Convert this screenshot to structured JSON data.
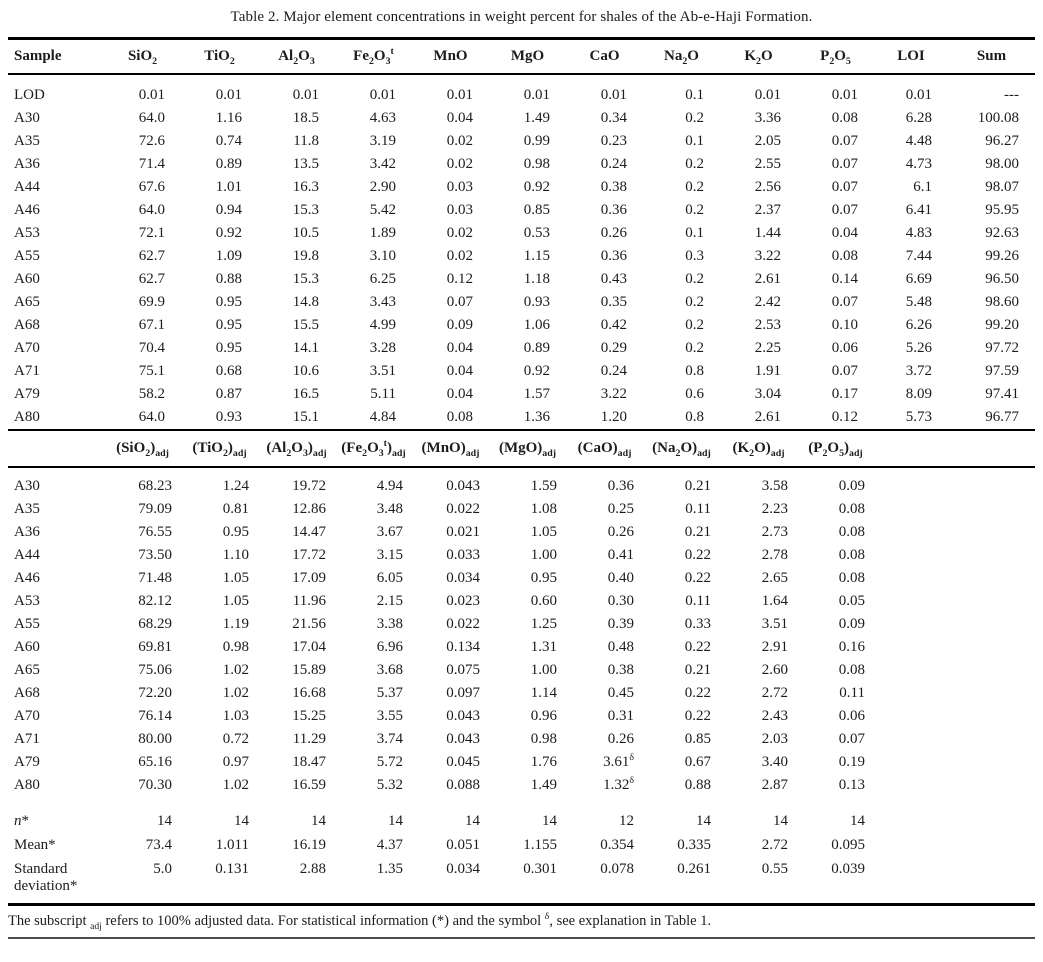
{
  "title": "Table 2. Major element concentrations in weight percent for shales of the Ab-e-Haji Formation.",
  "table1": {
    "headers": [
      "Sample",
      "SiO~2~",
      "TiO~2~",
      "Al~2~O~3~",
      "Fe~2~O~3~^t^",
      "MnO",
      "MgO",
      "CaO",
      "Na~2~O",
      "K~2~O",
      "P~2~O~5~",
      "LOI",
      "Sum"
    ],
    "rows": [
      [
        "LOD",
        "0.01",
        "0.01",
        "0.01",
        "0.01",
        "0.01",
        "0.01",
        "0.01",
        "0.1",
        "0.01",
        "0.01",
        "0.01",
        "---"
      ],
      [
        "A30",
        "64.0",
        "1.16",
        "18.5",
        "4.63",
        "0.04",
        "1.49",
        "0.34",
        "0.2",
        "3.36",
        "0.08",
        "6.28",
        "100.08"
      ],
      [
        "A35",
        "72.6",
        "0.74",
        "11.8",
        "3.19",
        "0.02",
        "0.99",
        "0.23",
        "0.1",
        "2.05",
        "0.07",
        "4.48",
        "96.27"
      ],
      [
        "A36",
        "71.4",
        "0.89",
        "13.5",
        "3.42",
        "0.02",
        "0.98",
        "0.24",
        "0.2",
        "2.55",
        "0.07",
        "4.73",
        "98.00"
      ],
      [
        "A44",
        "67.6",
        "1.01",
        "16.3",
        "2.90",
        "0.03",
        "0.92",
        "0.38",
        "0.2",
        "2.56",
        "0.07",
        "6.1",
        "98.07"
      ],
      [
        "A46",
        "64.0",
        "0.94",
        "15.3",
        "5.42",
        "0.03",
        "0.85",
        "0.36",
        "0.2",
        "2.37",
        "0.07",
        "6.41",
        "95.95"
      ],
      [
        "A53",
        "72.1",
        "0.92",
        "10.5",
        "1.89",
        "0.02",
        "0.53",
        "0.26",
        "0.1",
        "1.44",
        "0.04",
        "4.83",
        "92.63"
      ],
      [
        "A55",
        "62.7",
        "1.09",
        "19.8",
        "3.10",
        "0.02",
        "1.15",
        "0.36",
        "0.3",
        "3.22",
        "0.08",
        "7.44",
        "99.26"
      ],
      [
        "A60",
        "62.7",
        "0.88",
        "15.3",
        "6.25",
        "0.12",
        "1.18",
        "0.43",
        "0.2",
        "2.61",
        "0.14",
        "6.69",
        "96.50"
      ],
      [
        "A65",
        "69.9",
        "0.95",
        "14.8",
        "3.43",
        "0.07",
        "0.93",
        "0.35",
        "0.2",
        "2.42",
        "0.07",
        "5.48",
        "98.60"
      ],
      [
        "A68",
        "67.1",
        "0.95",
        "15.5",
        "4.99",
        "0.09",
        "1.06",
        "0.42",
        "0.2",
        "2.53",
        "0.10",
        "6.26",
        "99.20"
      ],
      [
        "A70",
        "70.4",
        "0.95",
        "14.1",
        "3.28",
        "0.04",
        "0.89",
        "0.29",
        "0.2",
        "2.25",
        "0.06",
        "5.26",
        "97.72"
      ],
      [
        "A71",
        "75.1",
        "0.68",
        "10.6",
        "3.51",
        "0.04",
        "0.92",
        "0.24",
        "0.8",
        "1.91",
        "0.07",
        "3.72",
        "97.59"
      ],
      [
        "A79",
        "58.2",
        "0.87",
        "16.5",
        "5.11",
        "0.04",
        "1.57",
        "3.22",
        "0.6",
        "3.04",
        "0.17",
        "8.09",
        "97.41"
      ],
      [
        "A80",
        "64.0",
        "0.93",
        "15.1",
        "4.84",
        "0.08",
        "1.36",
        "1.20",
        "0.8",
        "2.61",
        "0.12",
        "5.73",
        "96.77"
      ]
    ]
  },
  "table2": {
    "headers": [
      "(SiO~2~)~adj~",
      "(TiO~2~)~adj~",
      "(Al~2~O~3~)~adj~",
      "(Fe~2~O~3~^t^)~adj~",
      "(MnO)~adj~",
      "(MgO)~adj~",
      "(CaO)~adj~",
      "(Na~2~O)~adj~",
      "(K~2~O)~adj~",
      "(P~2~O~5~)~adj~"
    ],
    "rows": [
      [
        "A30",
        "68.23",
        "1.24",
        "19.72",
        "4.94",
        "0.043",
        "1.59",
        "0.36",
        "0.21",
        "3.58",
        "0.09"
      ],
      [
        "A35",
        "79.09",
        "0.81",
        "12.86",
        "3.48",
        "0.022",
        "1.08",
        "0.25",
        "0.11",
        "2.23",
        "0.08"
      ],
      [
        "A36",
        "76.55",
        "0.95",
        "14.47",
        "3.67",
        "0.021",
        "1.05",
        "0.26",
        "0.21",
        "2.73",
        "0.08"
      ],
      [
        "A44",
        "73.50",
        "1.10",
        "17.72",
        "3.15",
        "0.033",
        "1.00",
        "0.41",
        "0.22",
        "2.78",
        "0.08"
      ],
      [
        "A46",
        "71.48",
        "1.05",
        "17.09",
        "6.05",
        "0.034",
        "0.95",
        "0.40",
        "0.22",
        "2.65",
        "0.08"
      ],
      [
        "A53",
        "82.12",
        "1.05",
        "11.96",
        "2.15",
        "0.023",
        "0.60",
        "0.30",
        "0.11",
        "1.64",
        "0.05"
      ],
      [
        "A55",
        "68.29",
        "1.19",
        "21.56",
        "3.38",
        "0.022",
        "1.25",
        "0.39",
        "0.33",
        "3.51",
        "0.09"
      ],
      [
        "A60",
        "69.81",
        "0.98",
        "17.04",
        "6.96",
        "0.134",
        "1.31",
        "0.48",
        "0.22",
        "2.91",
        "0.16"
      ],
      [
        "A65",
        "75.06",
        "1.02",
        "15.89",
        "3.68",
        "0.075",
        "1.00",
        "0.38",
        "0.21",
        "2.60",
        "0.08"
      ],
      [
        "A68",
        "72.20",
        "1.02",
        "16.68",
        "5.37",
        "0.097",
        "1.14",
        "0.45",
        "0.22",
        "2.72",
        "0.11"
      ],
      [
        "A70",
        "76.14",
        "1.03",
        "15.25",
        "3.55",
        "0.043",
        "0.96",
        "0.31",
        "0.22",
        "2.43",
        "0.06"
      ],
      [
        "A71",
        "80.00",
        "0.72",
        "11.29",
        "3.74",
        "0.043",
        "0.98",
        "0.26",
        "0.85",
        "2.03",
        "0.07"
      ],
      [
        "A79",
        "65.16",
        "0.97",
        "18.47",
        "5.72",
        "0.045",
        "1.76",
        "3.61^δ^",
        "0.67",
        "3.40",
        "0.19"
      ],
      [
        "A80",
        "70.30",
        "1.02",
        "16.59",
        "5.32",
        "0.088",
        "1.49",
        "1.32^δ^",
        "0.88",
        "2.87",
        "0.13"
      ]
    ]
  },
  "stats": {
    "rows": [
      [
        "*n**",
        "14",
        "14",
        "14",
        "14",
        "14",
        "14",
        "12",
        "14",
        "14",
        "14"
      ],
      [
        "Mean*",
        "73.4",
        "1.011",
        "16.19",
        "4.37",
        "0.051",
        "1.155",
        "0.354",
        "0.335",
        "2.72",
        "0.095"
      ],
      [
        "Standard deviation*",
        "5.0",
        "0.131",
        "2.88",
        "1.35",
        "0.034",
        "0.301",
        "0.078",
        "0.261",
        "0.55",
        "0.039"
      ]
    ]
  },
  "footnote": "The subscript ~adj~ refers to 100% adjusted data. For statistical information (*) and the symbol ^δ^, see explanation in Table 1."
}
